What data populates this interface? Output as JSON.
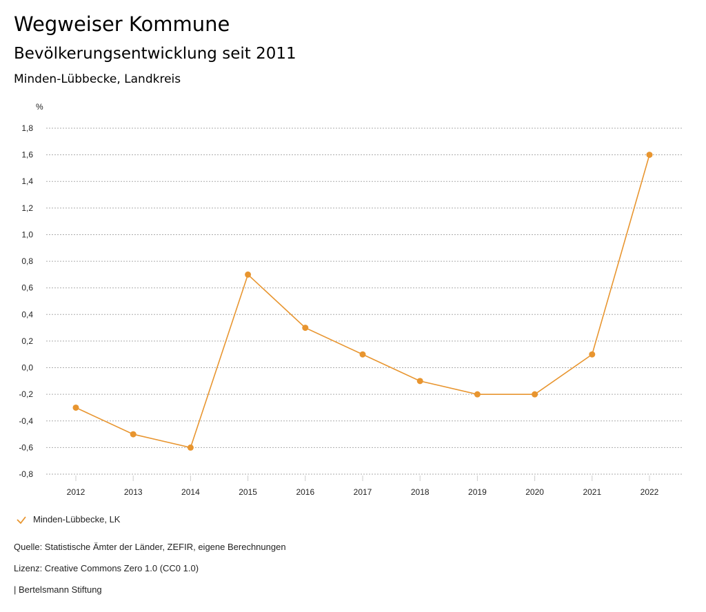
{
  "header": {
    "title": "Wegweiser Kommune",
    "subtitle": "Bevölkerungsentwicklung seit 2011",
    "region": "Minden-Lübbecke, Landkreis"
  },
  "chart_data": {
    "type": "line",
    "ylabel": "%",
    "x": [
      "2012",
      "2013",
      "2014",
      "2015",
      "2016",
      "2017",
      "2018",
      "2019",
      "2020",
      "2021",
      "2022"
    ],
    "series": [
      {
        "name": "Minden-Lübbecke, LK",
        "color": "#e8952f",
        "values": [
          -0.3,
          -0.5,
          -0.6,
          0.7,
          0.3,
          0.1,
          -0.1,
          -0.2,
          -0.2,
          0.1,
          1.6
        ]
      }
    ],
    "ylim": [
      -0.8,
      1.8
    ],
    "yticks": [
      1.8,
      1.6,
      1.4,
      1.2,
      1.0,
      0.8,
      0.6,
      0.4,
      0.2,
      0.0,
      -0.2,
      -0.4,
      -0.6,
      -0.8
    ],
    "ytick_labels": [
      "1,8",
      "1,6",
      "1,4",
      "1,2",
      "1,0",
      "0,8",
      "0,6",
      "0,4",
      "0,2",
      "0,0",
      "-0,2",
      "-0,4",
      "-0,6",
      "-0,8"
    ],
    "grid": true,
    "legend": "bottom-left"
  },
  "footer": {
    "source": "Quelle: Statistische Ämter der Länder, ZEFIR, eigene Berechnungen",
    "license": "Lizenz: Creative Commons Zero 1.0 (CC0 1.0)",
    "publisher": "| Bertelsmann Stiftung"
  }
}
